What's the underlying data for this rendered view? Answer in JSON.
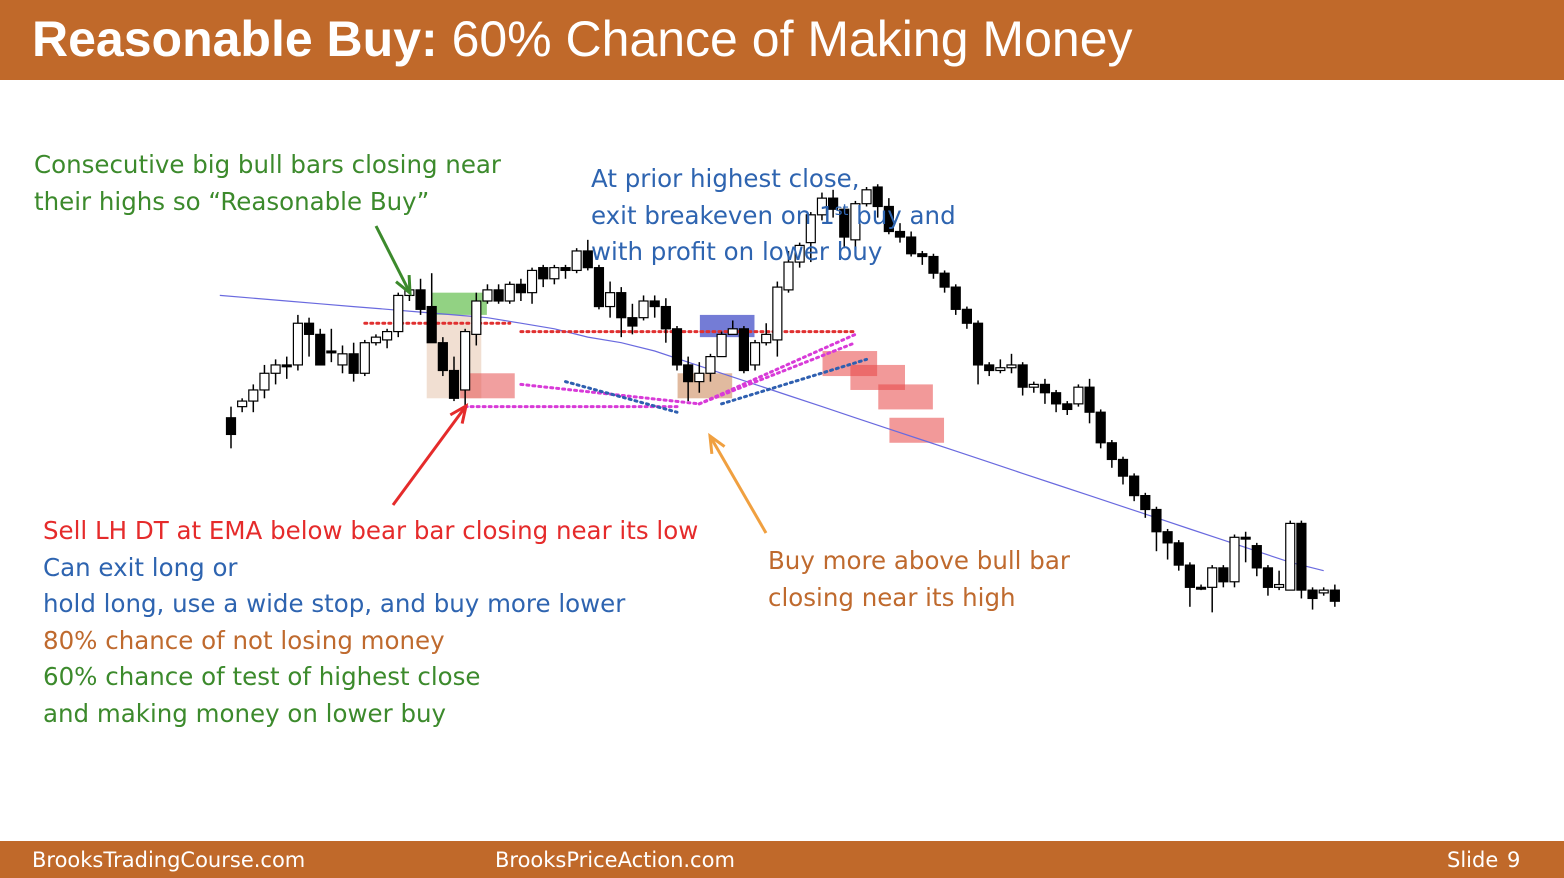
{
  "slide": {
    "title_bold": "Reasonable Buy:",
    "title_rest": " 60% Chance of Making Money",
    "footer_left": "BrooksTradingCourse.com",
    "footer_center": "BrooksPriceAction.com",
    "footer_slide_label": "Slide",
    "footer_slide_number": "9"
  },
  "annotations": {
    "top_left": [
      "Consecutive big bull bars closing near",
      "their highs so “Reasonable Buy”"
    ],
    "top_right_1": "At prior highest close,",
    "top_right_2a": "exit breakeven on 1",
    "top_right_2sup": "st",
    "top_right_2b": " buy and",
    "top_right_3": "with profit on lower buy",
    "bottom_left": [
      {
        "text": "Sell LH DT at EMA below bear bar closing near its low",
        "color": "red"
      },
      {
        "text": "Can exit long or",
        "color": "blue"
      },
      {
        "text": "hold long, use a wide stop, and buy more lower",
        "color": "blue"
      },
      {
        "text": "80% chance of not losing money",
        "color": "orange"
      },
      {
        "text": "60% chance of test of highest close",
        "color": "green"
      },
      {
        "text": "and making money on lower buy",
        "color": "green"
      }
    ],
    "bottom_right": [
      "Buy more above bull bar",
      "closing near its high"
    ]
  },
  "colors": {
    "header": "#c0692a",
    "green": "#3c8a2c",
    "blue": "#2e64b0",
    "red": "#e52b2b",
    "orange": "#bf6a2e",
    "ema": "#6a6adf",
    "dotted_red": "#e03030",
    "dotted_magenta": "#d83ad8",
    "dotted_blue": "#2e5fb0"
  },
  "chart_data": {
    "type": "candlestick",
    "title": "",
    "xlabel": "",
    "ylabel": "",
    "grid": false,
    "ylim": [
      0,
      100
    ],
    "bars": [
      [
        8,
        2,
        12,
        -3
      ],
      [
        12,
        14,
        15,
        10
      ],
      [
        14,
        18,
        20,
        10
      ],
      [
        18,
        24,
        27,
        15
      ],
      [
        24,
        27,
        29,
        20
      ],
      [
        27,
        27,
        30,
        22
      ],
      [
        27,
        42,
        45,
        25
      ],
      [
        42,
        38,
        44,
        30
      ],
      [
        38,
        27,
        40,
        27
      ],
      [
        32,
        32,
        40,
        28
      ],
      [
        27,
        31,
        34,
        24
      ],
      [
        31,
        24,
        35,
        21
      ],
      [
        24,
        35,
        36,
        23
      ],
      [
        35,
        37,
        38,
        34
      ],
      [
        36,
        39,
        40,
        33
      ],
      [
        39,
        52,
        53,
        37
      ],
      [
        52,
        54,
        56,
        50
      ],
      [
        54,
        47,
        58,
        45
      ],
      [
        48,
        35,
        60,
        45
      ],
      [
        35,
        25,
        37,
        23
      ],
      [
        25,
        15,
        30,
        14
      ],
      [
        18,
        39,
        40,
        12
      ],
      [
        38,
        50,
        53,
        34
      ],
      [
        50,
        54,
        56,
        49
      ],
      [
        54,
        50,
        56,
        49
      ],
      [
        50,
        56,
        57,
        49
      ],
      [
        56,
        53,
        58,
        50
      ],
      [
        53,
        61,
        62,
        49
      ],
      [
        62,
        58,
        63,
        55
      ],
      [
        58,
        62,
        63,
        56
      ],
      [
        62,
        61,
        63,
        58
      ],
      [
        61,
        68,
        69,
        60
      ],
      [
        68,
        62,
        72,
        61
      ],
      [
        62,
        48,
        63,
        47
      ],
      [
        48,
        53,
        57,
        44
      ],
      [
        53,
        44,
        55,
        37
      ],
      [
        44,
        41,
        49,
        38
      ],
      [
        44,
        50,
        52,
        43
      ],
      [
        50,
        48,
        52,
        44
      ],
      [
        48,
        40,
        51,
        35
      ],
      [
        40,
        27,
        41,
        25
      ],
      [
        27,
        21,
        30,
        14
      ],
      [
        21,
        24,
        28,
        17
      ],
      [
        24,
        30,
        31,
        21
      ],
      [
        30,
        38,
        39,
        30
      ],
      [
        38,
        40,
        43,
        38
      ],
      [
        40,
        25,
        41,
        24
      ],
      [
        27,
        35,
        36,
        25
      ],
      [
        35,
        38,
        42,
        34
      ],
      [
        36,
        55,
        57,
        30
      ],
      [
        54,
        64,
        68,
        53
      ],
      [
        64,
        70,
        71,
        62
      ],
      [
        71,
        81,
        82,
        64
      ],
      [
        81,
        87,
        89,
        79
      ],
      [
        87,
        83,
        90,
        80
      ],
      [
        83,
        73,
        84,
        69
      ],
      [
        72,
        85,
        86,
        67
      ],
      [
        85,
        90,
        91,
        84
      ],
      [
        91,
        84,
        92,
        80
      ],
      [
        84,
        75,
        87,
        74
      ],
      [
        75,
        73,
        78,
        71
      ],
      [
        73,
        67,
        75,
        66
      ],
      [
        67,
        66,
        68,
        63
      ],
      [
        66,
        60,
        67,
        58
      ],
      [
        60,
        55,
        61,
        53
      ],
      [
        55,
        47,
        56,
        45
      ],
      [
        47,
        42,
        48,
        40
      ],
      [
        42,
        27,
        43,
        20
      ],
      [
        27,
        25,
        28,
        23
      ],
      [
        25,
        26,
        29,
        24
      ],
      [
        26,
        27,
        31,
        24
      ],
      [
        27,
        19,
        28,
        16
      ],
      [
        19,
        20,
        21,
        17
      ],
      [
        20,
        17,
        22,
        13
      ],
      [
        17,
        13,
        18,
        10
      ],
      [
        13,
        11,
        14,
        9
      ],
      [
        13,
        19,
        20,
        12
      ],
      [
        19,
        10,
        22,
        6
      ],
      [
        10,
        -1,
        11,
        -3
      ],
      [
        -1,
        -7,
        0,
        -10
      ],
      [
        -7,
        -13,
        -6,
        -16
      ],
      [
        -13,
        -20,
        -12,
        -22
      ],
      [
        -20,
        -25,
        -19,
        -28
      ],
      [
        -25,
        -33,
        -24,
        -40
      ],
      [
        -33,
        -37,
        -32,
        -43
      ],
      [
        -37,
        -45,
        -36,
        -47
      ],
      [
        -45,
        -53,
        -44,
        -60
      ],
      [
        -53,
        -53,
        -52,
        -54
      ],
      [
        -53,
        -46,
        -45,
        -62
      ],
      [
        -46,
        -51,
        -45,
        -53
      ],
      [
        -51,
        -35,
        -34,
        -53
      ],
      [
        -35,
        -35,
        -33,
        -44
      ],
      [
        -38,
        -46,
        -37,
        -49
      ],
      [
        -46,
        -53,
        -45,
        -56
      ],
      [
        -53,
        -52,
        -47,
        -54
      ],
      [
        -54,
        -30,
        -29,
        -54
      ],
      [
        -30,
        -54,
        -29,
        -57
      ],
      [
        -54,
        -57,
        -53,
        -61
      ],
      [
        -55,
        -54,
        -53,
        -56
      ],
      [
        -54,
        -58,
        -52,
        -60
      ]
    ],
    "ema": [
      52,
      51,
      50,
      49,
      48,
      47,
      46,
      45,
      44,
      42,
      40,
      37,
      35,
      32,
      28,
      24,
      20,
      16,
      12,
      8,
      4,
      0,
      -4,
      -8,
      -12,
      -16,
      -20,
      -24,
      -28,
      -32,
      -36,
      -40,
      -44,
      -47
    ],
    "dotted_lines": [
      {
        "color": "red",
        "from": [
          12,
          42
        ],
        "to": [
          25,
          42
        ]
      },
      {
        "color": "red",
        "from": [
          26,
          39
        ],
        "to": [
          56,
          39
        ]
      },
      {
        "color": "magenta",
        "from": [
          21,
          12
        ],
        "to": [
          40,
          12
        ]
      },
      {
        "color": "magenta",
        "from": [
          26,
          20
        ],
        "to": [
          42,
          13
        ]
      },
      {
        "color": "magenta",
        "from": [
          42,
          13
        ],
        "to": [
          56,
          38
        ]
      },
      {
        "color": "magenta",
        "from": [
          42,
          13
        ],
        "to": [
          56,
          35
        ]
      },
      {
        "color": "blue",
        "from": [
          30,
          21
        ],
        "to": [
          40,
          10
        ]
      },
      {
        "color": "blue",
        "from": [
          44,
          13
        ],
        "to": [
          57,
          29
        ]
      }
    ]
  }
}
